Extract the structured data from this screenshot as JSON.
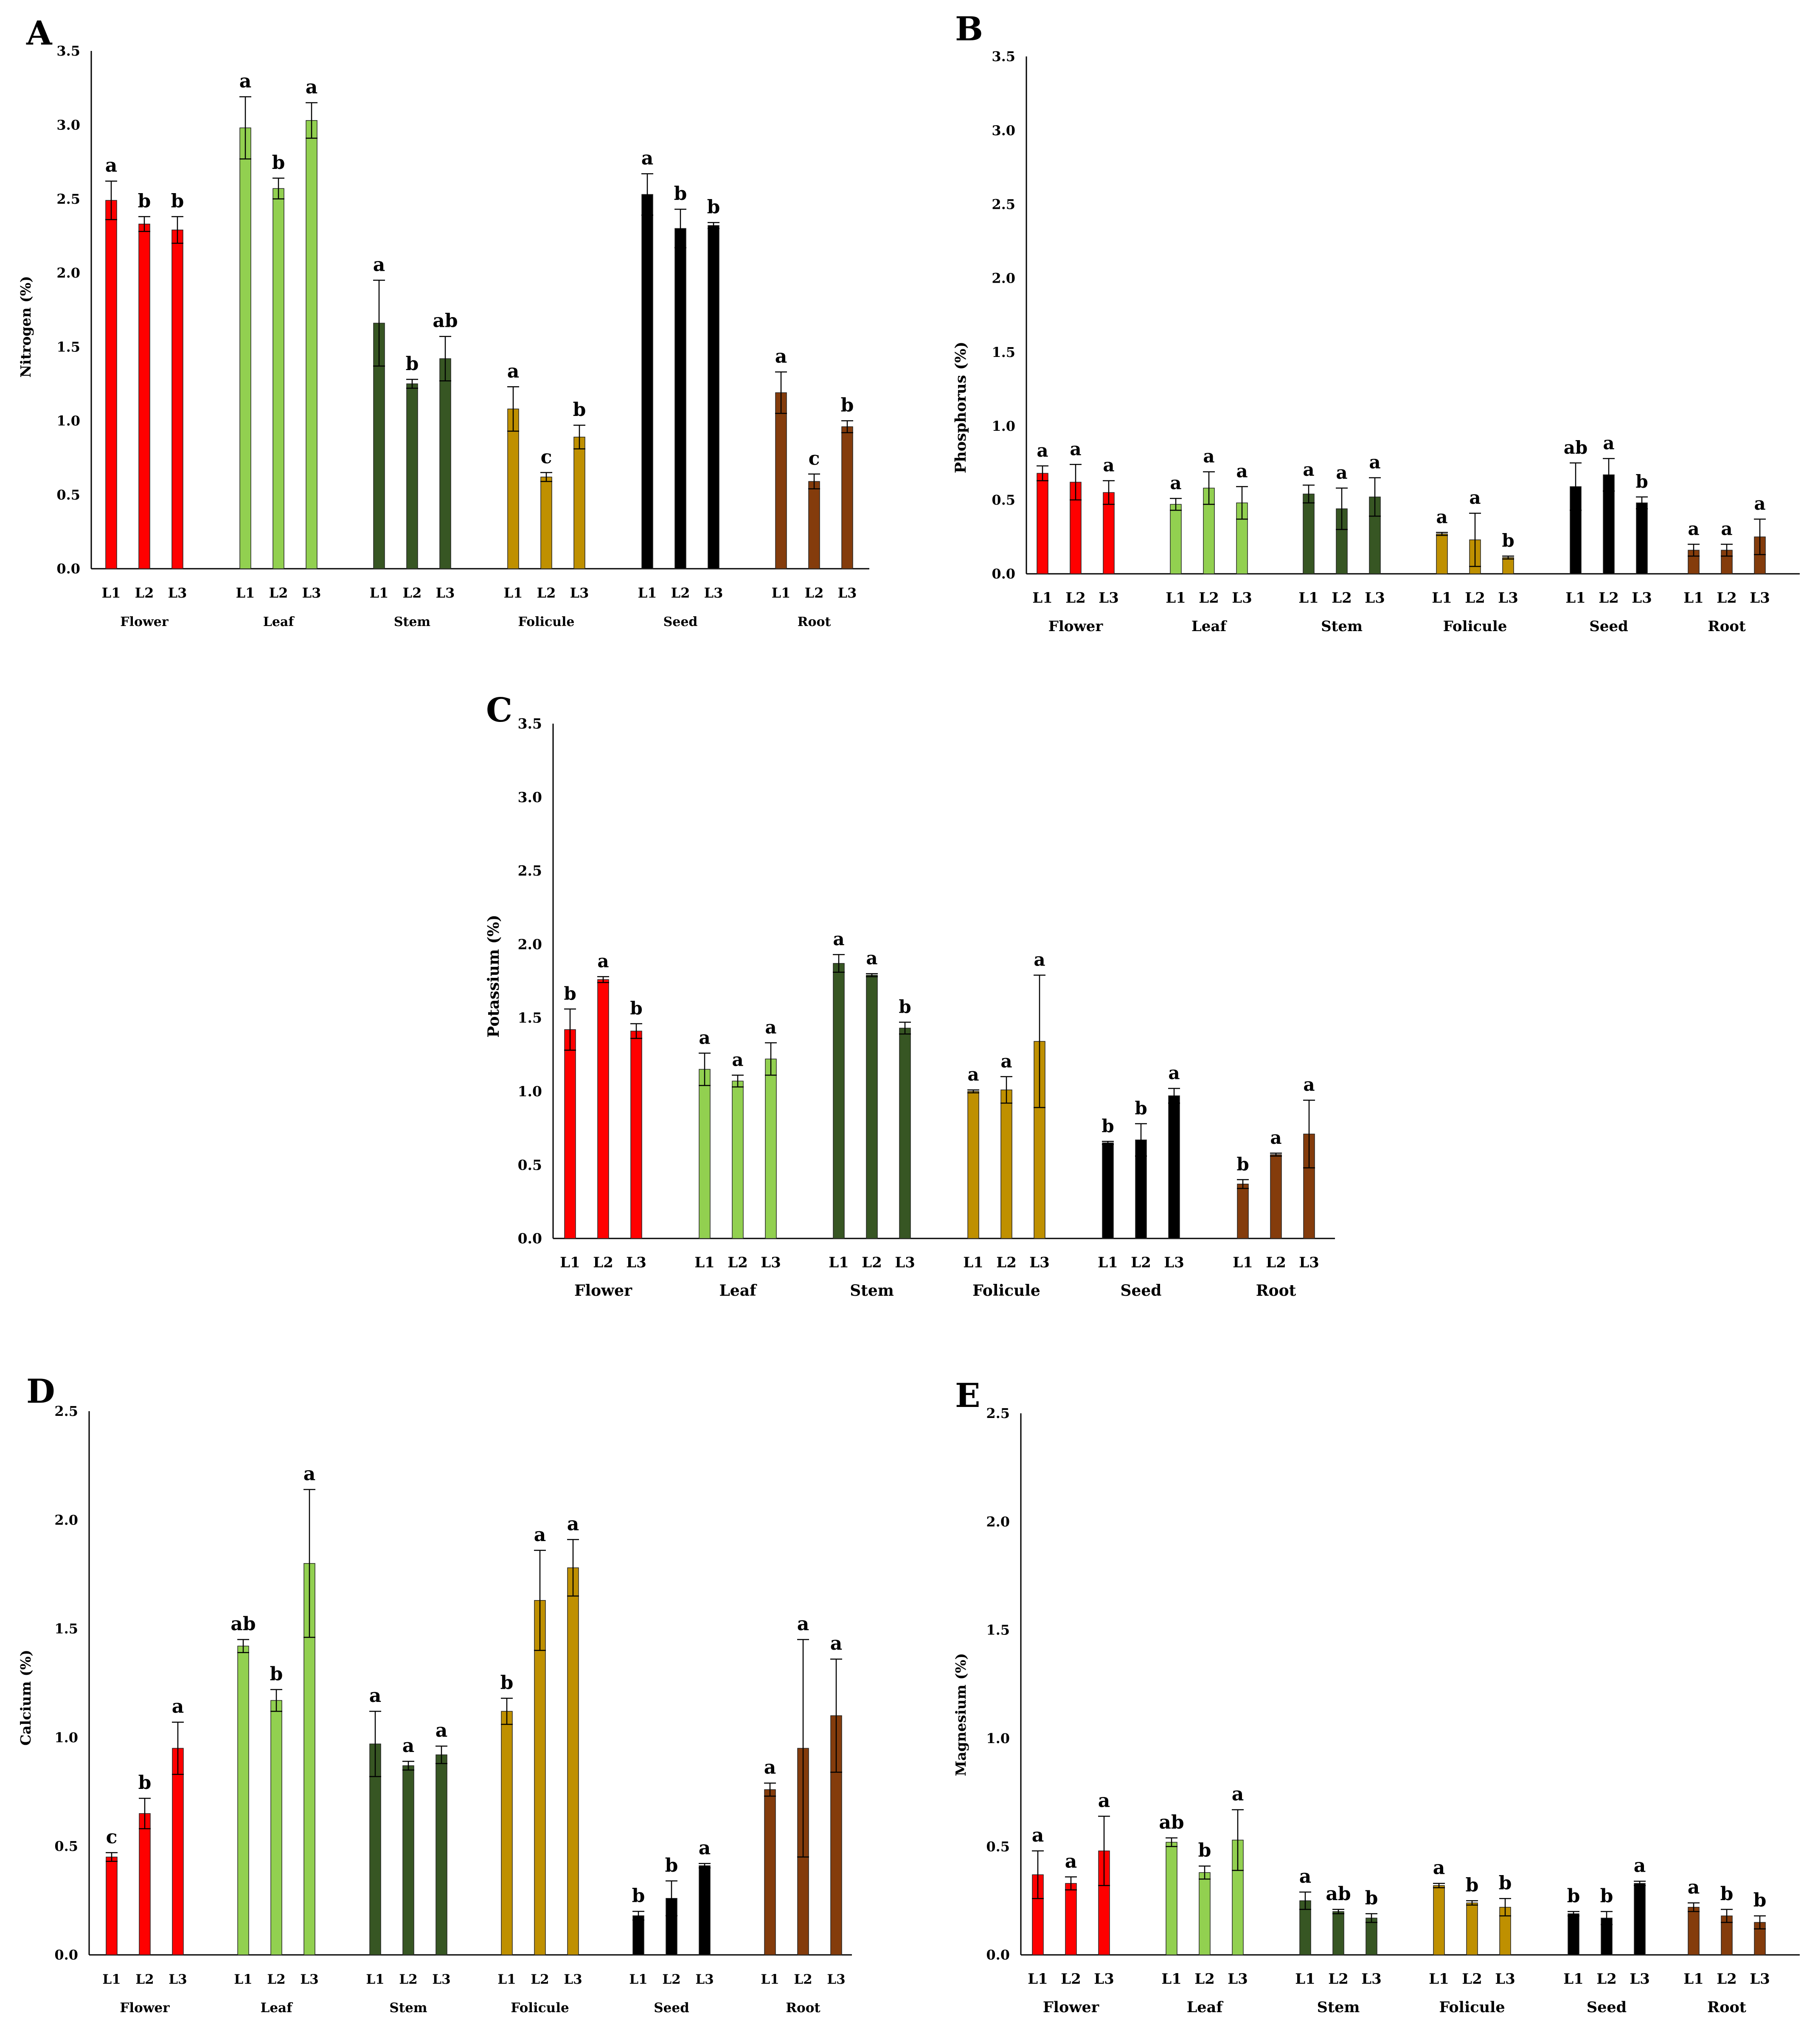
{
  "colors": {
    "Flower": "#ff0000",
    "Leaf": "#92d050",
    "Stem": "#375623",
    "Folicule": "#bf9000",
    "Seed": "#000000",
    "Root": "#843c0c",
    "axis": "#000000"
  },
  "chart_data": [
    {
      "panel": "A",
      "type": "bar",
      "ylabel": "Nitrogen (%)",
      "ylim": [
        0,
        3.5
      ],
      "yticks": [
        "0.0",
        "0.5",
        "1.0",
        "1.5",
        "2.0",
        "2.5",
        "3.0",
        "3.5"
      ],
      "groups": [
        {
          "name": "Flower",
          "bars": [
            {
              "label": "L1",
              "value": 2.49,
              "error": 0.13,
              "sig": "a"
            },
            {
              "label": "L2",
              "value": 2.33,
              "error": 0.05,
              "sig": "b"
            },
            {
              "label": "L3",
              "value": 2.29,
              "error": 0.09,
              "sig": "b"
            }
          ]
        },
        {
          "name": "Leaf",
          "bars": [
            {
              "label": "L1",
              "value": 2.98,
              "error": 0.21,
              "sig": "a"
            },
            {
              "label": "L2",
              "value": 2.57,
              "error": 0.07,
              "sig": "b"
            },
            {
              "label": "L3",
              "value": 3.03,
              "error": 0.12,
              "sig": "a"
            }
          ]
        },
        {
          "name": "Stem",
          "bars": [
            {
              "label": "L1",
              "value": 1.66,
              "error": 0.29,
              "sig": "a"
            },
            {
              "label": "L2",
              "value": 1.25,
              "error": 0.03,
              "sig": "b"
            },
            {
              "label": "L3",
              "value": 1.42,
              "error": 0.15,
              "sig": "ab"
            }
          ]
        },
        {
          "name": "Folicule",
          "bars": [
            {
              "label": "L1",
              "value": 1.08,
              "error": 0.15,
              "sig": "a"
            },
            {
              "label": "L2",
              "value": 0.62,
              "error": 0.03,
              "sig": "c"
            },
            {
              "label": "L3",
              "value": 0.89,
              "error": 0.08,
              "sig": "b"
            }
          ]
        },
        {
          "name": "Seed",
          "bars": [
            {
              "label": "L1",
              "value": 2.53,
              "error": 0.14,
              "sig": "a"
            },
            {
              "label": "L2",
              "value": 2.3,
              "error": 0.13,
              "sig": "b"
            },
            {
              "label": "L3",
              "value": 2.32,
              "error": 0.02,
              "sig": "b"
            }
          ]
        },
        {
          "name": "Root",
          "bars": [
            {
              "label": "L1",
              "value": 1.19,
              "error": 0.14,
              "sig": "a"
            },
            {
              "label": "L2",
              "value": 0.59,
              "error": 0.05,
              "sig": "c"
            },
            {
              "label": "L3",
              "value": 0.96,
              "error": 0.04,
              "sig": "b"
            }
          ]
        }
      ]
    },
    {
      "panel": "B",
      "type": "bar",
      "ylabel": "Phosphorus (%)",
      "ylim": [
        0,
        3.5
      ],
      "yticks": [
        "0.0",
        "0.5",
        "1.0",
        "1.5",
        "2.0",
        "2.5",
        "3.0",
        "3.5"
      ],
      "groups": [
        {
          "name": "Flower",
          "bars": [
            {
              "label": "L1",
              "value": 0.68,
              "error": 0.05,
              "sig": "a"
            },
            {
              "label": "L2",
              "value": 0.62,
              "error": 0.12,
              "sig": "a"
            },
            {
              "label": "L3",
              "value": 0.55,
              "error": 0.08,
              "sig": "a"
            }
          ]
        },
        {
          "name": "Leaf",
          "bars": [
            {
              "label": "L1",
              "value": 0.47,
              "error": 0.04,
              "sig": "a"
            },
            {
              "label": "L2",
              "value": 0.58,
              "error": 0.11,
              "sig": "a"
            },
            {
              "label": "L3",
              "value": 0.48,
              "error": 0.11,
              "sig": "a"
            }
          ]
        },
        {
          "name": "Stem",
          "bars": [
            {
              "label": "L1",
              "value": 0.54,
              "error": 0.06,
              "sig": "a"
            },
            {
              "label": "L2",
              "value": 0.44,
              "error": 0.14,
              "sig": "a"
            },
            {
              "label": "L3",
              "value": 0.52,
              "error": 0.13,
              "sig": "a"
            }
          ]
        },
        {
          "name": "Folicule",
          "bars": [
            {
              "label": "L1",
              "value": 0.27,
              "error": 0.01,
              "sig": "a"
            },
            {
              "label": "L2",
              "value": 0.23,
              "error": 0.18,
              "sig": "a"
            },
            {
              "label": "L3",
              "value": 0.11,
              "error": 0.01,
              "sig": "b"
            }
          ]
        },
        {
          "name": "Seed",
          "bars": [
            {
              "label": "L1",
              "value": 0.59,
              "error": 0.16,
              "sig": "ab"
            },
            {
              "label": "L2",
              "value": 0.67,
              "error": 0.11,
              "sig": "a"
            },
            {
              "label": "L3",
              "value": 0.48,
              "error": 0.04,
              "sig": "b"
            }
          ]
        },
        {
          "name": "Root",
          "bars": [
            {
              "label": "L1",
              "value": 0.16,
              "error": 0.04,
              "sig": "a"
            },
            {
              "label": "L2",
              "value": 0.16,
              "error": 0.04,
              "sig": "a"
            },
            {
              "label": "L3",
              "value": 0.25,
              "error": 0.12,
              "sig": "a"
            }
          ]
        }
      ]
    },
    {
      "panel": "C",
      "type": "bar",
      "ylabel": "Potassium (%)",
      "ylim": [
        0,
        3.5
      ],
      "yticks": [
        "0.0",
        "0.5",
        "1.0",
        "1.5",
        "2.0",
        "2.5",
        "3.0",
        "3.5"
      ],
      "groups": [
        {
          "name": "Flower",
          "bars": [
            {
              "label": "L1",
              "value": 1.42,
              "error": 0.14,
              "sig": "b"
            },
            {
              "label": "L2",
              "value": 1.76,
              "error": 0.02,
              "sig": "a"
            },
            {
              "label": "L3",
              "value": 1.41,
              "error": 0.05,
              "sig": "b"
            }
          ]
        },
        {
          "name": "Leaf",
          "bars": [
            {
              "label": "L1",
              "value": 1.15,
              "error": 0.11,
              "sig": "a"
            },
            {
              "label": "L2",
              "value": 1.07,
              "error": 0.04,
              "sig": "a"
            },
            {
              "label": "L3",
              "value": 1.22,
              "error": 0.11,
              "sig": "a"
            }
          ]
        },
        {
          "name": "Stem",
          "bars": [
            {
              "label": "L1",
              "value": 1.87,
              "error": 0.06,
              "sig": "a"
            },
            {
              "label": "L2",
              "value": 1.79,
              "error": 0.01,
              "sig": "a"
            },
            {
              "label": "L3",
              "value": 1.43,
              "error": 0.04,
              "sig": "b"
            }
          ]
        },
        {
          "name": "Folicule",
          "bars": [
            {
              "label": "L1",
              "value": 1.0,
              "error": 0.01,
              "sig": "a"
            },
            {
              "label": "L2",
              "value": 1.01,
              "error": 0.09,
              "sig": "a"
            },
            {
              "label": "L3",
              "value": 1.34,
              "error": 0.45,
              "sig": "a"
            }
          ]
        },
        {
          "name": "Seed",
          "bars": [
            {
              "label": "L1",
              "value": 0.65,
              "error": 0.01,
              "sig": "b"
            },
            {
              "label": "L2",
              "value": 0.67,
              "error": 0.11,
              "sig": "b"
            },
            {
              "label": "L3",
              "value": 0.97,
              "error": 0.05,
              "sig": "a"
            }
          ]
        },
        {
          "name": "Root",
          "bars": [
            {
              "label": "L1",
              "value": 0.37,
              "error": 0.03,
              "sig": "b"
            },
            {
              "label": "L2",
              "value": 0.57,
              "error": 0.01,
              "sig": "a"
            },
            {
              "label": "L3",
              "value": 0.71,
              "error": 0.23,
              "sig": "a"
            }
          ]
        }
      ]
    },
    {
      "panel": "D",
      "type": "bar",
      "ylabel": "Calcium (%)",
      "ylim": [
        0,
        2.5
      ],
      "yticks": [
        "0.0",
        "0.5",
        "1.0",
        "1.5",
        "2.0",
        "2.5"
      ],
      "groups": [
        {
          "name": "Flower",
          "bars": [
            {
              "label": "L1",
              "value": 0.45,
              "error": 0.02,
              "sig": "c"
            },
            {
              "label": "L2",
              "value": 0.65,
              "error": 0.07,
              "sig": "b"
            },
            {
              "label": "L3",
              "value": 0.95,
              "error": 0.12,
              "sig": "a"
            }
          ]
        },
        {
          "name": "Leaf",
          "bars": [
            {
              "label": "L1",
              "value": 1.42,
              "error": 0.03,
              "sig": "ab"
            },
            {
              "label": "L2",
              "value": 1.17,
              "error": 0.05,
              "sig": "b"
            },
            {
              "label": "L3",
              "value": 1.8,
              "error": 0.34,
              "sig": "a"
            }
          ]
        },
        {
          "name": "Stem",
          "bars": [
            {
              "label": "L1",
              "value": 0.97,
              "error": 0.15,
              "sig": "a"
            },
            {
              "label": "L2",
              "value": 0.87,
              "error": 0.02,
              "sig": "a"
            },
            {
              "label": "L3",
              "value": 0.92,
              "error": 0.04,
              "sig": "a"
            }
          ]
        },
        {
          "name": "Folicule",
          "bars": [
            {
              "label": "L1",
              "value": 1.12,
              "error": 0.06,
              "sig": "b"
            },
            {
              "label": "L2",
              "value": 1.63,
              "error": 0.23,
              "sig": "a"
            },
            {
              "label": "L3",
              "value": 1.78,
              "error": 0.13,
              "sig": "a"
            }
          ]
        },
        {
          "name": "Seed",
          "bars": [
            {
              "label": "L1",
              "value": 0.18,
              "error": 0.02,
              "sig": "b"
            },
            {
              "label": "L2",
              "value": 0.26,
              "error": 0.08,
              "sig": "b"
            },
            {
              "label": "L3",
              "value": 0.41,
              "error": 0.01,
              "sig": "a"
            }
          ]
        },
        {
          "name": "Root",
          "bars": [
            {
              "label": "L1",
              "value": 0.76,
              "error": 0.03,
              "sig": "a"
            },
            {
              "label": "L2",
              "value": 0.95,
              "error": 0.5,
              "sig": "a"
            },
            {
              "label": "L3",
              "value": 1.1,
              "error": 0.26,
              "sig": "a"
            }
          ]
        }
      ]
    },
    {
      "panel": "E",
      "type": "bar",
      "ylabel": "Magnesium (%)",
      "ylim": [
        0,
        2.5
      ],
      "yticks": [
        "0.0",
        "0.5",
        "1.0",
        "1.5",
        "2.0",
        "2.5"
      ],
      "groups": [
        {
          "name": "Flower",
          "bars": [
            {
              "label": "L1",
              "value": 0.37,
              "error": 0.11,
              "sig": "a"
            },
            {
              "label": "L2",
              "value": 0.33,
              "error": 0.03,
              "sig": "a"
            },
            {
              "label": "L3",
              "value": 0.48,
              "error": 0.16,
              "sig": "a"
            }
          ]
        },
        {
          "name": "Leaf",
          "bars": [
            {
              "label": "L1",
              "value": 0.52,
              "error": 0.02,
              "sig": "ab"
            },
            {
              "label": "L2",
              "value": 0.38,
              "error": 0.03,
              "sig": "b"
            },
            {
              "label": "L3",
              "value": 0.53,
              "error": 0.14,
              "sig": "a"
            }
          ]
        },
        {
          "name": "Stem",
          "bars": [
            {
              "label": "L1",
              "value": 0.25,
              "error": 0.04,
              "sig": "a"
            },
            {
              "label": "L2",
              "value": 0.2,
              "error": 0.01,
              "sig": "ab"
            },
            {
              "label": "L3",
              "value": 0.17,
              "error": 0.02,
              "sig": "b"
            }
          ]
        },
        {
          "name": "Folicule",
          "bars": [
            {
              "label": "L1",
              "value": 0.32,
              "error": 0.01,
              "sig": "a"
            },
            {
              "label": "L2",
              "value": 0.24,
              "error": 0.01,
              "sig": "b"
            },
            {
              "label": "L3",
              "value": 0.22,
              "error": 0.04,
              "sig": "b"
            }
          ]
        },
        {
          "name": "Seed",
          "bars": [
            {
              "label": "L1",
              "value": 0.19,
              "error": 0.01,
              "sig": "b"
            },
            {
              "label": "L2",
              "value": 0.17,
              "error": 0.03,
              "sig": "b"
            },
            {
              "label": "L3",
              "value": 0.33,
              "error": 0.01,
              "sig": "a"
            }
          ]
        },
        {
          "name": "Root",
          "bars": [
            {
              "label": "L1",
              "value": 0.22,
              "error": 0.02,
              "sig": "a"
            },
            {
              "label": "L2",
              "value": 0.18,
              "error": 0.03,
              "sig": "b"
            },
            {
              "label": "L3",
              "value": 0.15,
              "error": 0.03,
              "sig": "b"
            }
          ]
        }
      ]
    }
  ]
}
